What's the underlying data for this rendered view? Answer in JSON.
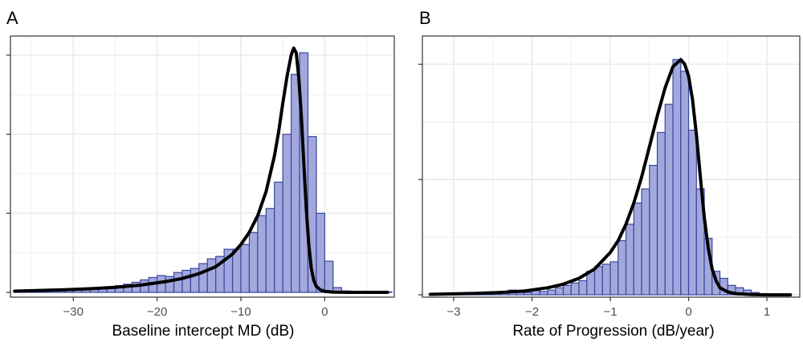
{
  "colors": {
    "bar_fill": "#a3a8dc",
    "bar_stroke": "#3846a0",
    "curve": "#000000",
    "grid": "#ebebeb",
    "panel_border": "#333333",
    "tick_text": "#4d4d4d"
  },
  "chart_data": [
    {
      "type": "bar",
      "panel_label": "A",
      "xlabel": "Baseline intercept MD (dB)",
      "ylabel": "",
      "xlim": [
        -37.5,
        8.3
      ],
      "ylim": [
        -0.02,
        1.07
      ],
      "x_ticks": [
        -30,
        -20,
        -10,
        0
      ],
      "x_tick_labels": [
        "−30",
        "−20",
        "−10",
        "0"
      ],
      "y_ticks": [
        0,
        0.33,
        0.66,
        0.99
      ],
      "grid": true,
      "bin_width": 1,
      "bins_start": [
        -37,
        -36,
        -35,
        -34,
        -33,
        -32,
        -31,
        -30,
        -29,
        -28,
        -27,
        -26,
        -25,
        -24,
        -23,
        -22,
        -21,
        -20,
        -19,
        -18,
        -17,
        -16,
        -15,
        -14,
        -13,
        -12,
        -11,
        -10,
        -9,
        -8,
        -7,
        -6,
        -5,
        -4,
        -3,
        -2,
        -1,
        0,
        1,
        2,
        3,
        4,
        5,
        6,
        7
      ],
      "values": [
        0.002,
        0.003,
        0.004,
        0.004,
        0.005,
        0.006,
        0.008,
        0.01,
        0.012,
        0.015,
        0.018,
        0.022,
        0.028,
        0.034,
        0.042,
        0.052,
        0.062,
        0.07,
        0.066,
        0.083,
        0.092,
        0.1,
        0.12,
        0.14,
        0.15,
        0.18,
        0.18,
        0.2,
        0.25,
        0.32,
        0.35,
        0.46,
        0.66,
        0.91,
        1.0,
        0.65,
        0.33,
        0.13,
        0.02,
        0.006,
        0.004,
        0.003,
        0.002,
        0.002,
        0.002
      ],
      "curve": {
        "x": [
          -37,
          -34,
          -31,
          -28,
          -25,
          -22,
          -19,
          -17,
          -15,
          -13,
          -11,
          -10,
          -9,
          -8,
          -7,
          -6,
          -5.5,
          -5,
          -4.5,
          -4,
          -3.7,
          -3.4,
          -3.1,
          -2.8,
          -2.5,
          -2.2,
          -1.9,
          -1.6,
          -1.3,
          -1,
          -0.5,
          0,
          1,
          3,
          7.5
        ],
        "y": [
          0.005,
          0.008,
          0.011,
          0.015,
          0.021,
          0.03,
          0.045,
          0.058,
          0.078,
          0.107,
          0.16,
          0.2,
          0.25,
          0.32,
          0.42,
          0.57,
          0.67,
          0.79,
          0.9,
          0.99,
          1.02,
          1.0,
          0.9,
          0.74,
          0.54,
          0.35,
          0.2,
          0.1,
          0.05,
          0.025,
          0.01,
          0.004,
          0.001,
          0.0,
          0.0
        ]
      }
    },
    {
      "type": "bar",
      "panel_label": "B",
      "xlabel": "Rate of Progression (dB/year)",
      "ylabel": "",
      "xlim": [
        -3.4,
        1.42
      ],
      "ylim": [
        -0.01,
        1.1
      ],
      "x_ticks": [
        -3,
        -2,
        -1,
        0,
        1
      ],
      "x_tick_labels": [
        "−3",
        "−2",
        "−1",
        "0",
        "1"
      ],
      "y_ticks": [
        0,
        0.49,
        0.98
      ],
      "grid": true,
      "bin_width": 0.1,
      "bins_start": [
        -3.3,
        -3.2,
        -3.1,
        -3.0,
        -2.9,
        -2.8,
        -2.7,
        -2.6,
        -2.5,
        -2.4,
        -2.3,
        -2.2,
        -2.1,
        -2.0,
        -1.9,
        -1.8,
        -1.7,
        -1.6,
        -1.5,
        -1.4,
        -1.3,
        -1.2,
        -1.1,
        -1.0,
        -0.9,
        -0.8,
        -0.7,
        -0.6,
        -0.5,
        -0.4,
        -0.3,
        -0.2,
        -0.1,
        0.0,
        0.1,
        0.2,
        0.3,
        0.4,
        0.5,
        0.6,
        0.7,
        0.8,
        0.9,
        1.0,
        1.1,
        1.2
      ],
      "values": [
        0.002,
        0.002,
        0.002,
        0.002,
        0.003,
        0.003,
        0.004,
        0.005,
        0.006,
        0.007,
        0.02,
        0.01,
        0.01,
        0.018,
        0.014,
        0.02,
        0.03,
        0.04,
        0.05,
        0.06,
        0.1,
        0.12,
        0.13,
        0.14,
        0.23,
        0.3,
        0.39,
        0.45,
        0.55,
        0.69,
        0.81,
        1.0,
        0.95,
        0.7,
        0.45,
        0.24,
        0.1,
        0.07,
        0.04,
        0.03,
        0.02,
        0.01,
        0.005,
        0.003,
        0.002,
        0.002
      ],
      "curve": {
        "x": [
          -3.3,
          -3.0,
          -2.7,
          -2.4,
          -2.1,
          -1.8,
          -1.6,
          -1.4,
          -1.2,
          -1.0,
          -0.9,
          -0.8,
          -0.7,
          -0.6,
          -0.5,
          -0.4,
          -0.3,
          -0.2,
          -0.1,
          -0.05,
          0.0,
          0.05,
          0.1,
          0.15,
          0.2,
          0.25,
          0.3,
          0.35,
          0.4,
          0.5,
          0.6,
          0.8,
          1.0,
          1.3
        ],
        "y": [
          0.002,
          0.004,
          0.006,
          0.01,
          0.016,
          0.03,
          0.045,
          0.07,
          0.11,
          0.18,
          0.23,
          0.3,
          0.39,
          0.5,
          0.63,
          0.76,
          0.88,
          0.97,
          1.0,
          0.98,
          0.93,
          0.83,
          0.68,
          0.5,
          0.33,
          0.2,
          0.11,
          0.06,
          0.03,
          0.012,
          0.005,
          0.001,
          0.0,
          0.0
        ]
      }
    }
  ]
}
